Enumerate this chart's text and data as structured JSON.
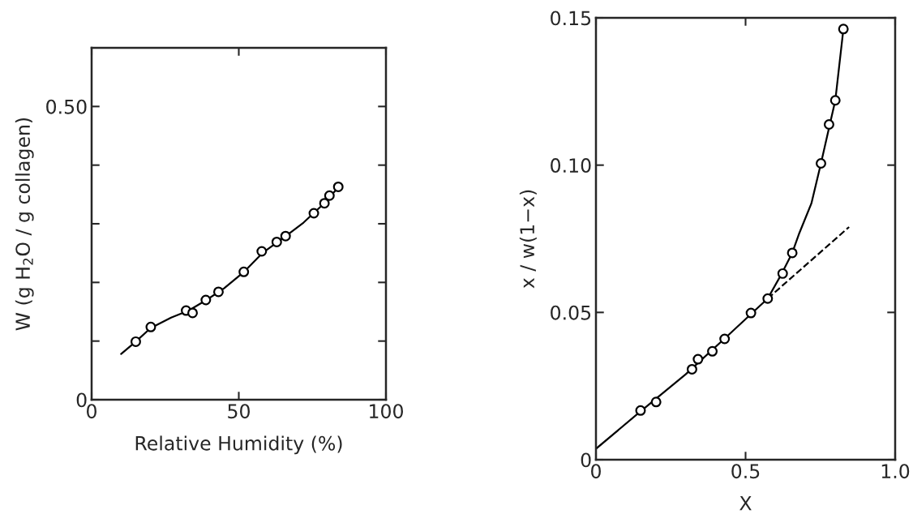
{
  "chart_data": [
    {
      "type": "scatter",
      "xlabel": "Relative Humidity (%)",
      "ylabel": "W (g H$_{2}$O / g collagen)",
      "xlim": [
        0,
        100
      ],
      "ylim": [
        0,
        0.6
      ],
      "xticks": [
        0,
        50,
        100
      ],
      "yticks": [
        0,
        {
          "value": 0.1,
          "label": null
        },
        {
          "value": 0.2,
          "label": null
        },
        {
          "value": 0.3,
          "label": null
        },
        {
          "value": 0.4,
          "label": null
        },
        {
          "value": 0.5,
          "label": "0.50"
        }
      ],
      "grid": false,
      "legend": false,
      "series": [
        {
          "marker": "circle",
          "color": "#000000",
          "x": [
            15.0,
            20.1,
            32.1,
            34.3,
            38.8,
            43.1,
            51.7,
            57.8,
            62.9,
            65.9,
            75.5,
            79.1,
            80.8,
            83.8
          ],
          "values": [
            0.099,
            0.124,
            0.152,
            0.148,
            0.17,
            0.184,
            0.218,
            0.253,
            0.269,
            0.279,
            0.318,
            0.335,
            0.348,
            0.363
          ]
        },
        {
          "type": "line",
          "color": "#000000",
          "line_style": "solid",
          "x": [
            10,
            15,
            20,
            27,
            33,
            39,
            45,
            52,
            58,
            66,
            72,
            78,
            84
          ],
          "values": [
            0.078,
            0.099,
            0.122,
            0.14,
            0.152,
            0.17,
            0.19,
            0.219,
            0.25,
            0.279,
            0.302,
            0.33,
            0.363
          ]
        }
      ]
    },
    {
      "type": "scatter",
      "xlabel": "X",
      "ylabel": "x / w(1−x)",
      "xlim": [
        0,
        1.0
      ],
      "ylim": [
        0,
        0.15
      ],
      "xticks": [
        0,
        0.5,
        {
          "value": 1.0,
          "label": "1.0"
        }
      ],
      "yticks": [
        0,
        0.05,
        {
          "value": 0.1,
          "label": "0.10"
        },
        0.15
      ],
      "grid": false,
      "legend": false,
      "series": [
        {
          "marker": "circle",
          "color": "#000000",
          "x": [
            0.149,
            0.201,
            0.321,
            0.341,
            0.389,
            0.43,
            0.518,
            0.574,
            0.624,
            0.656,
            0.752,
            0.779,
            0.8,
            0.827
          ],
          "values": [
            0.0167,
            0.0196,
            0.0307,
            0.0341,
            0.0368,
            0.041,
            0.0498,
            0.0547,
            0.0632,
            0.0702,
            0.1006,
            0.1138,
            0.122,
            0.1462
          ]
        },
        {
          "type": "line",
          "color": "#000000",
          "line_style": "solid",
          "x": [
            0,
            0.15,
            0.3,
            0.45,
            0.574,
            0.62,
            0.656,
            0.68,
            0.72,
            0.752,
            0.8,
            0.827
          ],
          "values": [
            0.0037,
            0.0165,
            0.029,
            0.043,
            0.0547,
            0.063,
            0.0702,
            0.077,
            0.087,
            0.1006,
            0.122,
            0.1462
          ]
        },
        {
          "type": "line",
          "color": "#000000",
          "line_style": "dashed",
          "x": [
            0.574,
            0.846
          ],
          "values": [
            0.0547,
            0.079
          ]
        }
      ]
    }
  ]
}
